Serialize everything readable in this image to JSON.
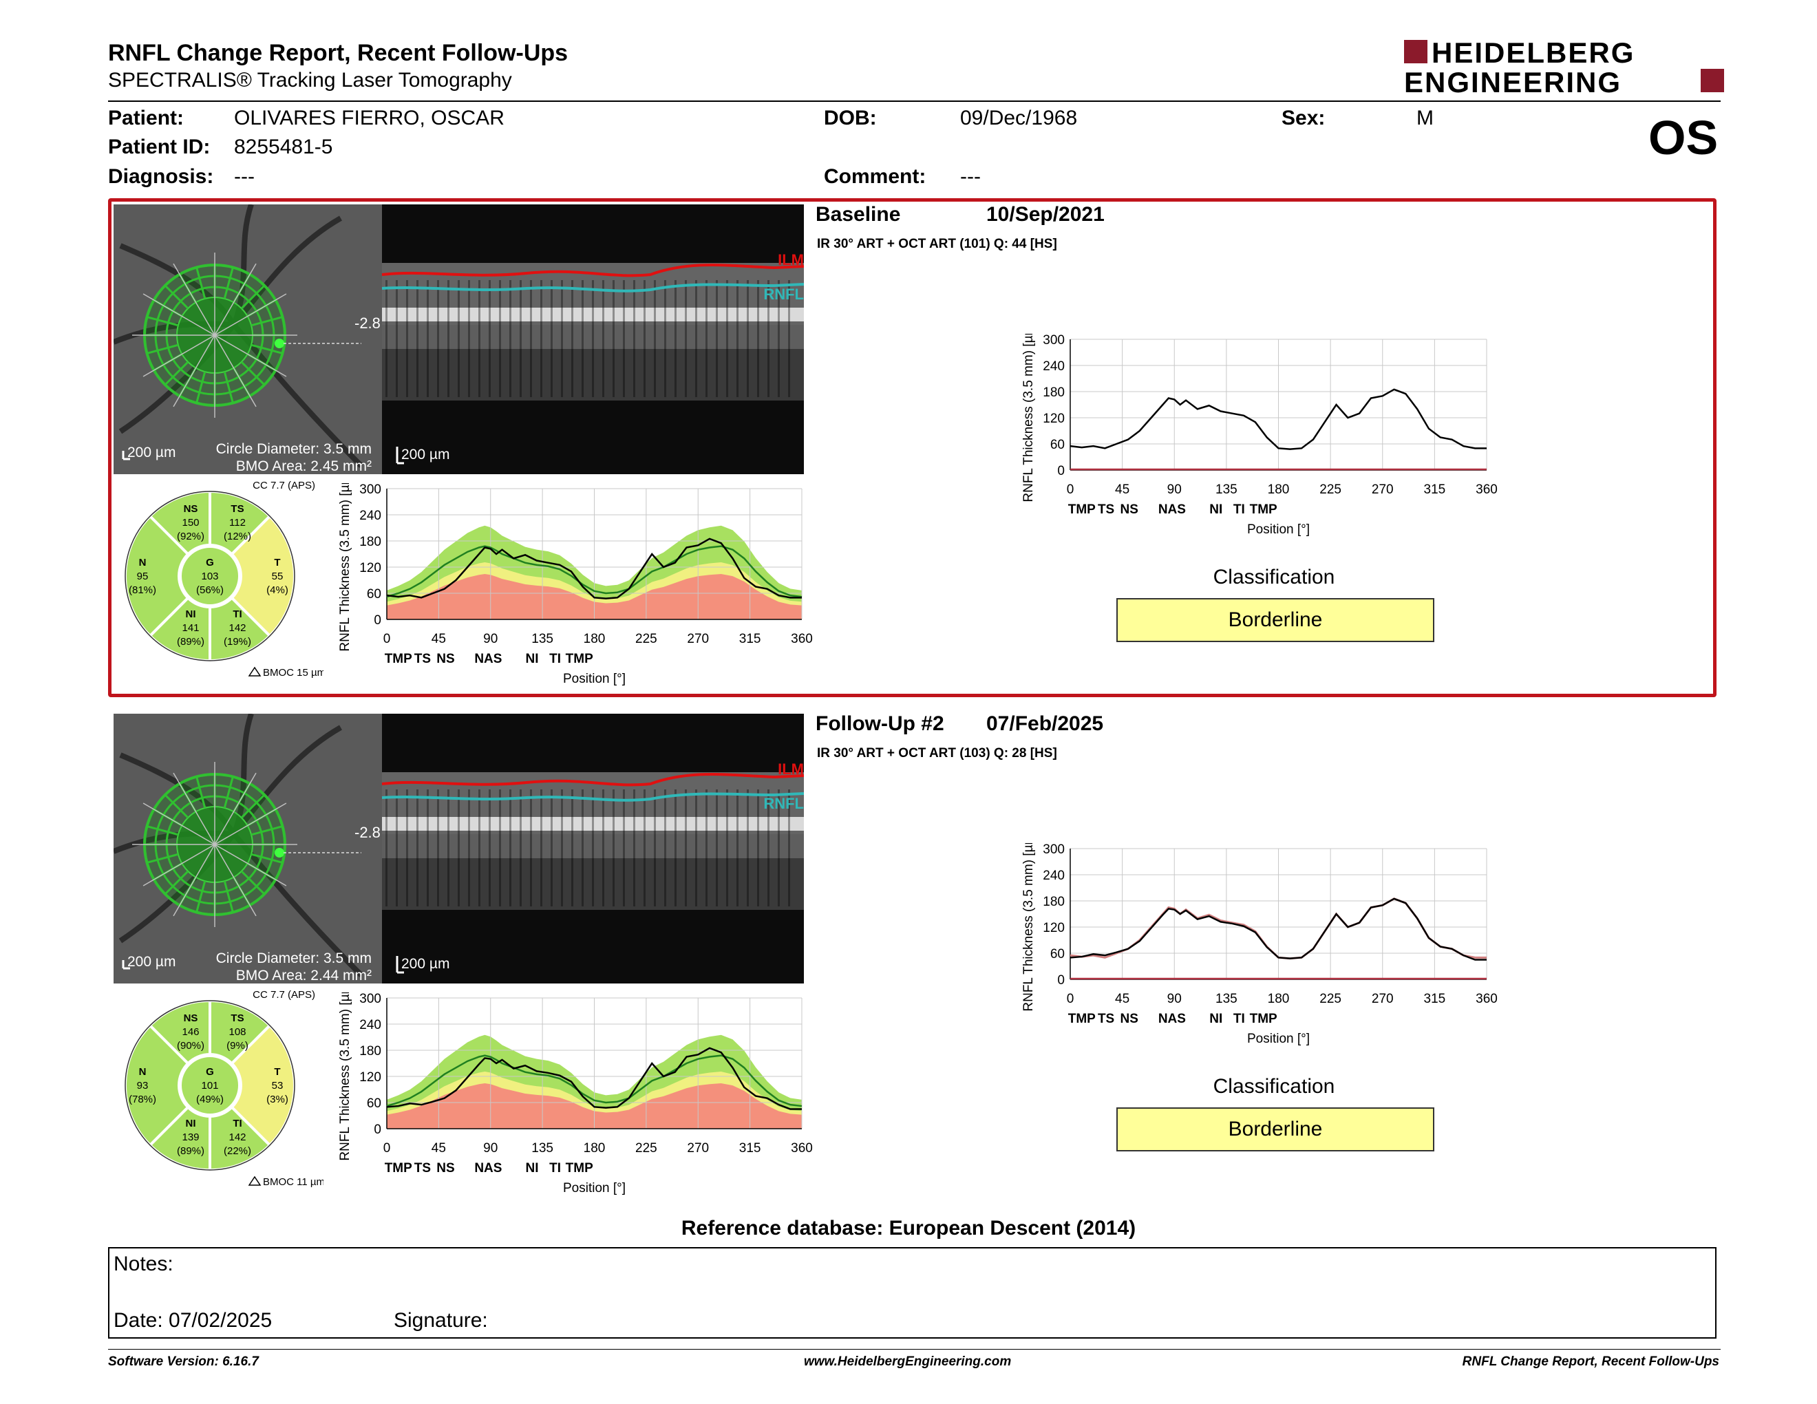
{
  "header": {
    "title": "RNFL Change Report, Recent Follow-Ups",
    "subtitle": "SPECTRALIS® Tracking Laser Tomography",
    "logo_line1": "HEIDELBERG",
    "logo_line2": "ENGINEERING"
  },
  "patient": {
    "name_label": "Patient:",
    "name": "OLIVARES FIERRO, OSCAR",
    "id_label": "Patient ID:",
    "id": "8255481-5",
    "diagnosis_label": "Diagnosis:",
    "diagnosis": "---",
    "dob_label": "DOB:",
    "dob": "09/Dec/1968",
    "comment_label": "Comment:",
    "comment": "---",
    "sex_label": "Sex:",
    "sex": "M",
    "eye": "OS"
  },
  "exams": [
    {
      "title": "Baseline",
      "date": "10/Sep/2021",
      "scan_info": "IR 30° ART + OCT ART (101) Q: 44 [HS]",
      "scale_fundus": "200 µm",
      "scale_oct": "200 µm",
      "circle_diameter": "Circle Diameter: 3.5 mm",
      "bmo_area": "BMO Area: 2.45 mm²",
      "fovea_angle": "-2.8",
      "ilm_label": "ILM",
      "rnfl_label": "RNFL",
      "cc_label": "CC 7.7 (APS)",
      "bmoc": "BMOC 15 µm",
      "sectors": {
        "NS": {
          "name": "NS",
          "value": "150",
          "pct": "(92%)"
        },
        "TS": {
          "name": "TS",
          "value": "112",
          "pct": "(12%)"
        },
        "N": {
          "name": "N",
          "value": "95",
          "pct": "(81%)"
        },
        "G": {
          "name": "G",
          "value": "103",
          "pct": "(56%)"
        },
        "T": {
          "name": "T",
          "value": "55",
          "pct": "(4%)"
        },
        "NI": {
          "name": "NI",
          "value": "141",
          "pct": "(89%)"
        },
        "TI": {
          "name": "TI",
          "value": "142",
          "pct": "(19%)"
        }
      },
      "classification_label": "Classification",
      "classification": "Borderline"
    },
    {
      "title": "Follow-Up #2",
      "date": "07/Feb/2025",
      "scan_info": "IR 30° ART + OCT ART (103) Q: 28 [HS]",
      "scale_fundus": "200 µm",
      "scale_oct": "200 µm",
      "circle_diameter": "Circle Diameter: 3.5 mm",
      "bmo_area": "BMO Area: 2.44 mm²",
      "fovea_angle": "-2.8",
      "ilm_label": "ILM",
      "rnfl_label": "RNFL",
      "cc_label": "CC 7.7 (APS)",
      "bmoc": "BMOC 11 µm",
      "sectors": {
        "NS": {
          "name": "NS",
          "value": "146",
          "pct": "(90%)"
        },
        "TS": {
          "name": "TS",
          "value": "108",
          "pct": "(9%)"
        },
        "N": {
          "name": "N",
          "value": "93",
          "pct": "(78%)"
        },
        "G": {
          "name": "G",
          "value": "101",
          "pct": "(49%)"
        },
        "T": {
          "name": "T",
          "value": "53",
          "pct": "(3%)"
        },
        "NI": {
          "name": "NI",
          "value": "139",
          "pct": "(89%)"
        },
        "TI": {
          "name": "TI",
          "value": "142",
          "pct": "(22%)"
        }
      },
      "classification_label": "Classification",
      "classification": "Borderline"
    }
  ],
  "chart_common": {
    "ylabel": "RNFL Thickness (3.5 mm) [µm]",
    "xlabel": "Position [°]",
    "x_ticks": [
      "0",
      "45",
      "90",
      "135",
      "180",
      "225",
      "270",
      "315",
      "360"
    ],
    "y_ticks": [
      "0",
      "60",
      "120",
      "180",
      "240",
      "300"
    ],
    "sector_labels": [
      "TMP",
      "TS",
      "NS",
      "NAS",
      "NI",
      "TI",
      "TMP"
    ],
    "sector_positions": [
      10,
      31,
      51,
      88,
      126,
      146,
      167
    ]
  },
  "chart_data": [
    {
      "type": "line",
      "name": "baseline-normative",
      "xlim": [
        0,
        360
      ],
      "ylim": [
        0,
        300
      ],
      "x": [
        0,
        10,
        20,
        30,
        40,
        50,
        60,
        70,
        80,
        85,
        90,
        95,
        100,
        110,
        120,
        130,
        140,
        150,
        160,
        170,
        180,
        190,
        200,
        210,
        220,
        230,
        240,
        250,
        260,
        270,
        280,
        290,
        300,
        310,
        320,
        330,
        340,
        350,
        360
      ],
      "y": [
        55,
        52,
        55,
        50,
        60,
        70,
        90,
        120,
        150,
        165,
        162,
        150,
        160,
        140,
        148,
        135,
        130,
        125,
        110,
        75,
        50,
        48,
        50,
        70,
        110,
        150,
        120,
        130,
        165,
        170,
        185,
        175,
        140,
        95,
        75,
        70,
        55,
        50,
        50
      ],
      "normal_median": [
        52,
        60,
        70,
        85,
        105,
        125,
        140,
        155,
        165,
        168,
        165,
        158,
        150,
        140,
        130,
        125,
        122,
        115,
        100,
        80,
        65,
        60,
        62,
        70,
        90,
        110,
        120,
        135,
        150,
        160,
        165,
        168,
        160,
        140,
        110,
        85,
        65,
        55,
        52
      ]
    },
    {
      "type": "line",
      "name": "followup-normative",
      "xlim": [
        0,
        360
      ],
      "ylim": [
        0,
        300
      ],
      "x": [
        0,
        10,
        20,
        30,
        40,
        50,
        60,
        70,
        80,
        85,
        90,
        95,
        100,
        110,
        120,
        130,
        140,
        150,
        160,
        170,
        180,
        190,
        200,
        210,
        220,
        230,
        240,
        250,
        260,
        270,
        280,
        290,
        300,
        310,
        320,
        330,
        340,
        350,
        360
      ],
      "y": [
        50,
        52,
        58,
        55,
        62,
        70,
        88,
        118,
        148,
        162,
        160,
        150,
        158,
        138,
        145,
        132,
        128,
        122,
        108,
        74,
        50,
        48,
        50,
        70,
        110,
        150,
        120,
        130,
        165,
        170,
        185,
        175,
        140,
        95,
        75,
        70,
        55,
        45,
        45
      ],
      "normal_median": [
        52,
        60,
        70,
        85,
        105,
        125,
        140,
        155,
        165,
        168,
        165,
        158,
        150,
        140,
        130,
        125,
        122,
        115,
        100,
        80,
        65,
        60,
        62,
        70,
        90,
        110,
        120,
        135,
        150,
        160,
        165,
        168,
        160,
        140,
        110,
        85,
        65,
        55,
        52
      ]
    }
  ],
  "notes": {
    "notes_label": "Notes:",
    "date_label": "Date: 07/02/2025",
    "signature_label": "Signature:"
  },
  "reference_db": "Reference database: European Descent (2014)",
  "footer": {
    "software": "Software Version: 6.16.7",
    "website": "www.HeidelbergEngineering.com",
    "report": "RNFL Change Report, Recent Follow-Ups"
  },
  "colors": {
    "accent_red": "#c0141c",
    "logo_red": "#8b1a2b",
    "normal_green": "#a8e060",
    "borderline_yellow": "#f0f080",
    "outside_red": "#f4907c",
    "classification_bg": "#ffff99",
    "ilm_red": "#e01010",
    "rnfl_cyan": "#30b8b8"
  }
}
